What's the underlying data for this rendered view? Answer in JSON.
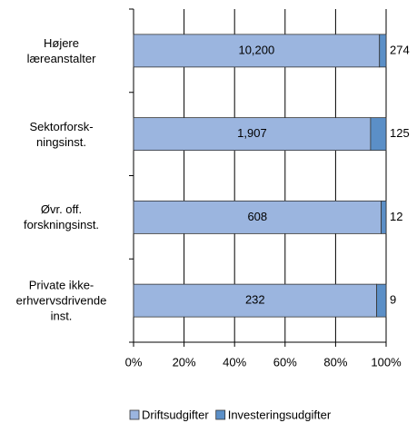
{
  "chart_data": {
    "type": "bar",
    "orientation": "horizontal",
    "stacked": "percent",
    "categories": [
      "Højere\nlæreanstalter",
      "Sektorforsk-\nningsinst.",
      "Øvr. off.\nforskningsinst.",
      "Private ikke-\nerhvervsdrivende\ninst."
    ],
    "series": [
      {
        "name": "Driftsudgifter",
        "color": "#9bb5df",
        "values": [
          10200,
          1907,
          608,
          232
        ],
        "value_labels": [
          "10,200",
          "1,907",
          "608",
          "232"
        ]
      },
      {
        "name": "Investeringsudgifter",
        "color": "#5b8fc7",
        "values": [
          274,
          125,
          12,
          9
        ]
      }
    ],
    "xlim": [
      0,
      100
    ],
    "xticks": [
      {
        "value": 0,
        "label": "0%"
      },
      {
        "value": 20,
        "label": "20%"
      },
      {
        "value": 40,
        "label": "40%"
      },
      {
        "value": 60,
        "label": "60%"
      },
      {
        "value": 80,
        "label": "80%"
      },
      {
        "value": 100,
        "label": "100%"
      }
    ],
    "grid": true,
    "legend": "bottom"
  }
}
